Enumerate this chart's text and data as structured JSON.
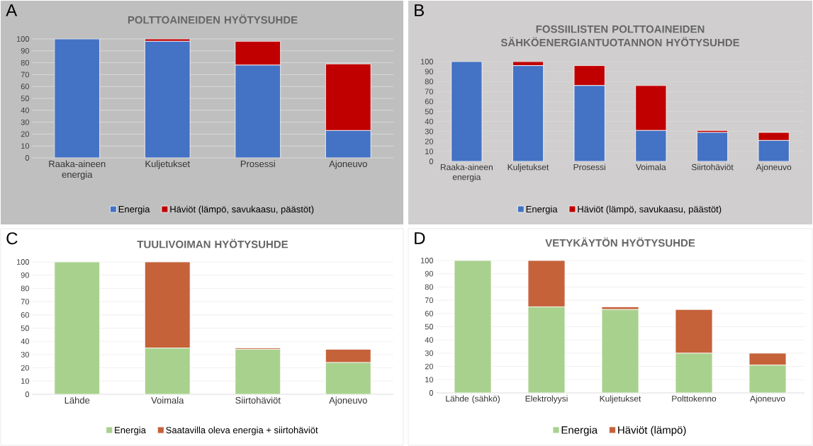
{
  "chart_data": [
    {
      "type": "bar",
      "title": "POLTTOAINEIDEN HYÖTYSUHDE",
      "categories": [
        "Raaka-aineen energia",
        "Kuljetukset",
        "Prosessi",
        "Ajoneuvo"
      ],
      "stacked": true,
      "series": [
        {
          "name": "Energia",
          "color": "#4472c4",
          "values": [
            100,
            98,
            78,
            23
          ]
        },
        {
          "name": "Häviöt (lämpö, savukaasu, päästöt)",
          "color": "#c00000",
          "values": [
            0,
            2,
            20,
            56
          ]
        }
      ],
      "ylim": [
        0,
        100
      ],
      "yticks": [
        0,
        10,
        20,
        30,
        40,
        50,
        60,
        70,
        80,
        90,
        100
      ],
      "grid": "y",
      "legend": "bottom",
      "annotations": [
        "A"
      ]
    },
    {
      "type": "bar",
      "title": "FOSSIILISTEN POLTTOAINEIDEN SÄHKÖENERGIANTUOTANNON HYÖTYSUHDE",
      "categories": [
        "Raaka-aineen energia",
        "Kuljetukset",
        "Prosessi",
        "Voimala",
        "Siirtohäviöt",
        "Ajoneuvo"
      ],
      "stacked": true,
      "series": [
        {
          "name": "Energia",
          "color": "#4472c4",
          "values": [
            100,
            96,
            76,
            31,
            29,
            21
          ]
        },
        {
          "name": "Häviöt (lämpö, savukaasu, päästöt)",
          "color": "#c00000",
          "values": [
            0,
            4,
            20,
            45,
            2,
            8
          ]
        }
      ],
      "ylim": [
        0,
        100
      ],
      "yticks": [
        0,
        10,
        20,
        30,
        40,
        50,
        60,
        70,
        80,
        90,
        100
      ],
      "grid": "y",
      "legend": "bottom",
      "annotations": [
        "B"
      ]
    },
    {
      "type": "bar",
      "title": "TUULIVOIMAN HYÖTYSUHDE",
      "categories": [
        "Lähde",
        "Voimala",
        "Siirtohäviöt",
        "Ajoneuvo"
      ],
      "stacked": true,
      "series": [
        {
          "name": "Energia",
          "color": "#a9d18e",
          "values": [
            100,
            35,
            34,
            24
          ]
        },
        {
          "name": "Saatavilla oleva energia + siirtohäviöt",
          "color": "#c5623a",
          "values": [
            0,
            65,
            1,
            10
          ]
        }
      ],
      "ylim": [
        0,
        100
      ],
      "yticks": [
        0,
        10,
        20,
        30,
        40,
        50,
        60,
        70,
        80,
        90,
        100
      ],
      "grid": "y",
      "legend": "bottom",
      "annotations": [
        "C"
      ]
    },
    {
      "type": "bar",
      "title": "VETYKÄYTÖN HYÖTYSUHDE",
      "categories": [
        "Lähde (sähkö)",
        "Elektrolyysi",
        "Kuljetukset",
        "Polttokenno",
        "Ajoneuvo"
      ],
      "stacked": true,
      "series": [
        {
          "name": "Energia",
          "color": "#a9d18e",
          "values": [
            100,
            65,
            63,
            30,
            21
          ]
        },
        {
          "name": "Häviöt (lämpö)",
          "color": "#c5623a",
          "values": [
            0,
            35,
            2,
            33,
            9
          ]
        }
      ],
      "ylim": [
        0,
        100
      ],
      "yticks": [
        0,
        10,
        20,
        30,
        40,
        50,
        60,
        70,
        80,
        90,
        100
      ],
      "grid": "y",
      "legend": "bottom",
      "annotations": [
        "D"
      ]
    }
  ]
}
